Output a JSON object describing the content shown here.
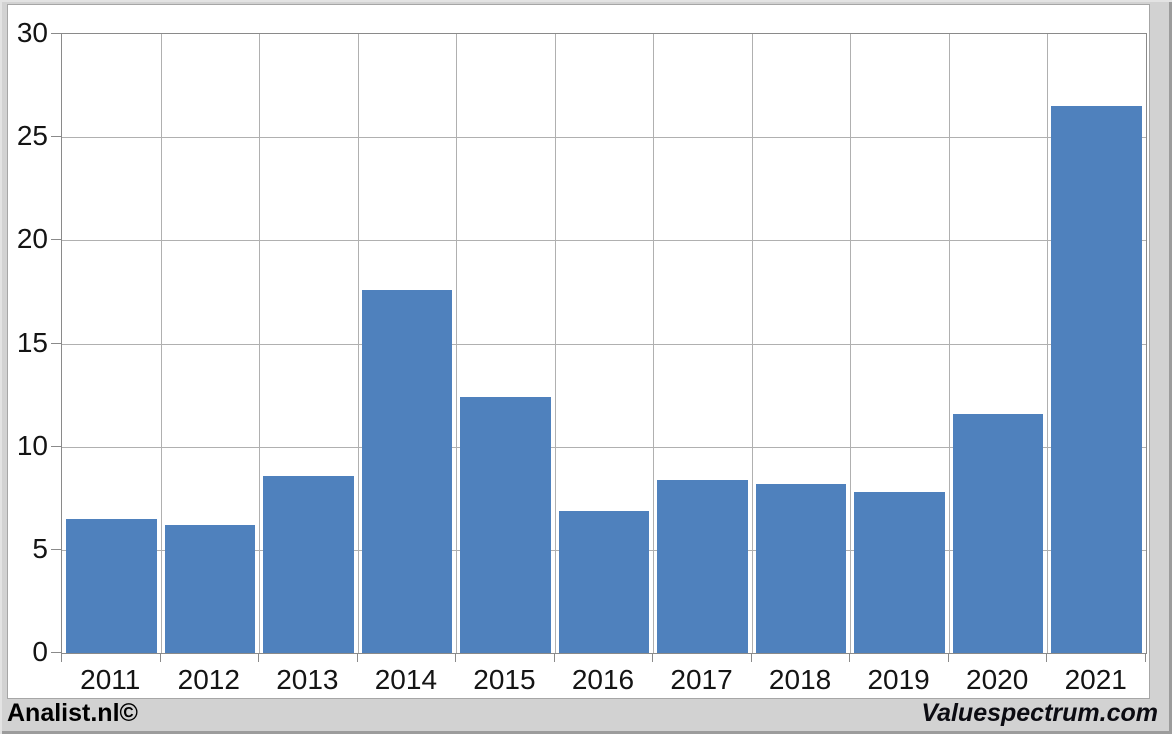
{
  "chart_data": {
    "type": "bar",
    "title": "",
    "xlabel": "",
    "ylabel": "",
    "categories": [
      "2011",
      "2012",
      "2013",
      "2014",
      "2015",
      "2016",
      "2017",
      "2018",
      "2019",
      "2020",
      "2021"
    ],
    "values": [
      6.5,
      6.2,
      8.6,
      17.6,
      12.4,
      6.9,
      8.4,
      8.2,
      7.8,
      11.6,
      26.5
    ],
    "ylim": [
      0,
      30
    ],
    "yticks": [
      0,
      5,
      10,
      15,
      20,
      25,
      30
    ],
    "grid": true,
    "legend": false,
    "bar_color": "#4F81BD",
    "gridline_color": "#B0B0B0",
    "axis_color": "#8A8A8A",
    "plot_bg": "#FFFFFF",
    "outer_bg": "#D2D2D2"
  },
  "footer": {
    "left_text": "Analist.nl©",
    "right_text": "Valuespectrum.com"
  }
}
